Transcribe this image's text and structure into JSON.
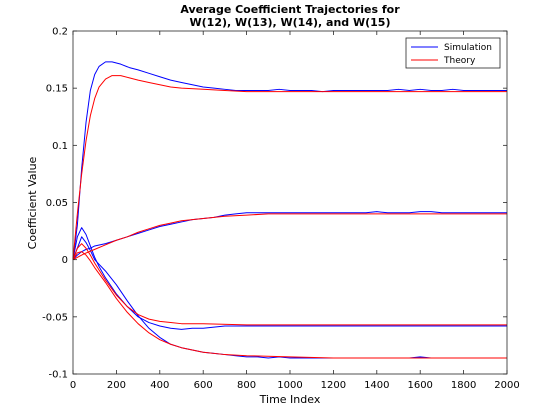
{
  "chart_data": {
    "type": "line",
    "title": [
      "Average Coefficient Trajectories for",
      "W(12), W(13), W(14), and W(15)"
    ],
    "xlabel": "Time Index",
    "ylabel": "Coefficient Value",
    "xlim": [
      0,
      2000
    ],
    "ylim": [
      -0.1,
      0.2
    ],
    "xticks": [
      "0",
      "200",
      "400",
      "600",
      "800",
      "1000",
      "1200",
      "1400",
      "1600",
      "1800",
      "2000"
    ],
    "yticks": [
      "0.2",
      "0.15",
      "0.1",
      "0.05",
      "0",
      "-0.05",
      "-0.1"
    ],
    "grid": false,
    "legend_position": "top-right",
    "legend": [
      "Simulation",
      "Theory"
    ],
    "colors": {
      "simulation": "#0000ff",
      "theory": "#ff0000"
    },
    "series": [
      {
        "name": "Simulation",
        "values": [
          [
            [
              0,
              0
            ],
            [
              20,
              0.03
            ],
            [
              40,
              0.08
            ],
            [
              60,
              0.12
            ],
            [
              80,
              0.148
            ],
            [
              100,
              0.162
            ],
            [
              120,
              0.169
            ],
            [
              150,
              0.173
            ],
            [
              180,
              0.173
            ],
            [
              220,
              0.171
            ],
            [
              260,
              0.168
            ],
            [
              300,
              0.166
            ],
            [
              350,
              0.163
            ],
            [
              400,
              0.16
            ],
            [
              450,
              0.157
            ],
            [
              500,
              0.155
            ],
            [
              550,
              0.153
            ],
            [
              600,
              0.151
            ],
            [
              650,
              0.15
            ],
            [
              700,
              0.149
            ],
            [
              750,
              0.148
            ],
            [
              800,
              0.148
            ],
            [
              850,
              0.148
            ],
            [
              900,
              0.148
            ],
            [
              950,
              0.149
            ],
            [
              1000,
              0.148
            ],
            [
              1050,
              0.148
            ],
            [
              1100,
              0.148
            ],
            [
              1150,
              0.147
            ],
            [
              1200,
              0.148
            ],
            [
              1250,
              0.148
            ],
            [
              1300,
              0.148
            ],
            [
              1350,
              0.148
            ],
            [
              1400,
              0.148
            ],
            [
              1450,
              0.148
            ],
            [
              1500,
              0.149
            ],
            [
              1550,
              0.148
            ],
            [
              1600,
              0.149
            ],
            [
              1650,
              0.148
            ],
            [
              1700,
              0.148
            ],
            [
              1750,
              0.149
            ],
            [
              1800,
              0.148
            ],
            [
              1850,
              0.148
            ],
            [
              1900,
              0.148
            ],
            [
              1950,
              0.148
            ],
            [
              2000,
              0.148
            ]
          ],
          [
            [
              0,
              0
            ],
            [
              20,
              0.004
            ],
            [
              40,
              0.007
            ],
            [
              60,
              0.009
            ],
            [
              80,
              0.01
            ],
            [
              100,
              0.012
            ],
            [
              150,
              0.014
            ],
            [
              200,
              0.017
            ],
            [
              250,
              0.02
            ],
            [
              300,
              0.023
            ],
            [
              350,
              0.026
            ],
            [
              400,
              0.029
            ],
            [
              450,
              0.031
            ],
            [
              500,
              0.033
            ],
            [
              550,
              0.035
            ],
            [
              600,
              0.036
            ],
            [
              650,
              0.037
            ],
            [
              700,
              0.039
            ],
            [
              750,
              0.04
            ],
            [
              800,
              0.041
            ],
            [
              850,
              0.041
            ],
            [
              900,
              0.041
            ],
            [
              950,
              0.041
            ],
            [
              1000,
              0.041
            ],
            [
              1050,
              0.041
            ],
            [
              1100,
              0.041
            ],
            [
              1150,
              0.041
            ],
            [
              1200,
              0.041
            ],
            [
              1250,
              0.041
            ],
            [
              1300,
              0.041
            ],
            [
              1350,
              0.041
            ],
            [
              1400,
              0.042
            ],
            [
              1450,
              0.041
            ],
            [
              1500,
              0.041
            ],
            [
              1550,
              0.041
            ],
            [
              1600,
              0.042
            ],
            [
              1650,
              0.042
            ],
            [
              1700,
              0.041
            ],
            [
              1750,
              0.041
            ],
            [
              1800,
              0.041
            ],
            [
              1850,
              0.041
            ],
            [
              1900,
              0.041
            ],
            [
              1950,
              0.041
            ],
            [
              2000,
              0.041
            ]
          ],
          [
            [
              0,
              0
            ],
            [
              20,
              0.02
            ],
            [
              40,
              0.028
            ],
            [
              60,
              0.022
            ],
            [
              80,
              0.012
            ],
            [
              100,
              0.002
            ],
            [
              120,
              -0.006
            ],
            [
              150,
              -0.016
            ],
            [
              200,
              -0.03
            ],
            [
              250,
              -0.041
            ],
            [
              300,
              -0.05
            ],
            [
              350,
              -0.055
            ],
            [
              400,
              -0.058
            ],
            [
              450,
              -0.06
            ],
            [
              500,
              -0.061
            ],
            [
              550,
              -0.06
            ],
            [
              600,
              -0.06
            ],
            [
              650,
              -0.059
            ],
            [
              700,
              -0.058
            ],
            [
              750,
              -0.058
            ],
            [
              800,
              -0.058
            ],
            [
              850,
              -0.058
            ],
            [
              900,
              -0.058
            ],
            [
              950,
              -0.058
            ],
            [
              1000,
              -0.058
            ],
            [
              1050,
              -0.058
            ],
            [
              1100,
              -0.058
            ],
            [
              1150,
              -0.058
            ],
            [
              1200,
              -0.058
            ],
            [
              1250,
              -0.058
            ],
            [
              1300,
              -0.058
            ],
            [
              1350,
              -0.058
            ],
            [
              1400,
              -0.058
            ],
            [
              1450,
              -0.058
            ],
            [
              1500,
              -0.058
            ],
            [
              1550,
              -0.058
            ],
            [
              1600,
              -0.058
            ],
            [
              1650,
              -0.058
            ],
            [
              1700,
              -0.058
            ],
            [
              1750,
              -0.058
            ],
            [
              1800,
              -0.058
            ],
            [
              1850,
              -0.058
            ],
            [
              1900,
              -0.058
            ],
            [
              1950,
              -0.058
            ],
            [
              2000,
              -0.058
            ]
          ],
          [
            [
              0,
              0
            ],
            [
              20,
              0.01
            ],
            [
              40,
              0.02
            ],
            [
              60,
              0.015
            ],
            [
              80,
              0.008
            ],
            [
              100,
              0.0
            ],
            [
              150,
              -0.01
            ],
            [
              200,
              -0.022
            ],
            [
              250,
              -0.036
            ],
            [
              300,
              -0.049
            ],
            [
              350,
              -0.06
            ],
            [
              400,
              -0.068
            ],
            [
              450,
              -0.074
            ],
            [
              500,
              -0.077
            ],
            [
              550,
              -0.079
            ],
            [
              600,
              -0.081
            ],
            [
              650,
              -0.082
            ],
            [
              700,
              -0.083
            ],
            [
              750,
              -0.084
            ],
            [
              800,
              -0.085
            ],
            [
              850,
              -0.085
            ],
            [
              900,
              -0.086
            ],
            [
              950,
              -0.085
            ],
            [
              1000,
              -0.086
            ],
            [
              1050,
              -0.086
            ],
            [
              1100,
              -0.086
            ],
            [
              1150,
              -0.086
            ],
            [
              1200,
              -0.086
            ],
            [
              1250,
              -0.086
            ],
            [
              1300,
              -0.086
            ],
            [
              1350,
              -0.086
            ],
            [
              1400,
              -0.086
            ],
            [
              1450,
              -0.086
            ],
            [
              1500,
              -0.086
            ],
            [
              1550,
              -0.086
            ],
            [
              1600,
              -0.085
            ],
            [
              1650,
              -0.086
            ],
            [
              1700,
              -0.086
            ],
            [
              1750,
              -0.086
            ],
            [
              1800,
              -0.086
            ],
            [
              1850,
              -0.086
            ],
            [
              1900,
              -0.086
            ],
            [
              1950,
              -0.086
            ],
            [
              2000,
              -0.086
            ]
          ]
        ]
      },
      {
        "name": "Theory",
        "values": [
          [
            [
              0,
              0
            ],
            [
              20,
              0.04
            ],
            [
              40,
              0.075
            ],
            [
              60,
              0.104
            ],
            [
              80,
              0.126
            ],
            [
              100,
              0.141
            ],
            [
              120,
              0.151
            ],
            [
              150,
              0.158
            ],
            [
              180,
              0.161
            ],
            [
              220,
              0.161
            ],
            [
              260,
              0.159
            ],
            [
              300,
              0.157
            ],
            [
              350,
              0.155
            ],
            [
              400,
              0.153
            ],
            [
              450,
              0.151
            ],
            [
              500,
              0.15
            ],
            [
              600,
              0.149
            ],
            [
              700,
              0.148
            ],
            [
              800,
              0.147
            ],
            [
              1000,
              0.147
            ],
            [
              1200,
              0.147
            ],
            [
              1400,
              0.147
            ],
            [
              1600,
              0.147
            ],
            [
              1800,
              0.147
            ],
            [
              2000,
              0.147
            ]
          ],
          [
            [
              0,
              0
            ],
            [
              50,
              0.005
            ],
            [
              100,
              0.009
            ],
            [
              150,
              0.013
            ],
            [
              200,
              0.017
            ],
            [
              250,
              0.02
            ],
            [
              300,
              0.024
            ],
            [
              350,
              0.027
            ],
            [
              400,
              0.03
            ],
            [
              450,
              0.032
            ],
            [
              500,
              0.034
            ],
            [
              550,
              0.035
            ],
            [
              600,
              0.036
            ],
            [
              700,
              0.038
            ],
            [
              800,
              0.039
            ],
            [
              900,
              0.04
            ],
            [
              1000,
              0.04
            ],
            [
              1200,
              0.04
            ],
            [
              1400,
              0.04
            ],
            [
              1600,
              0.04
            ],
            [
              1800,
              0.04
            ],
            [
              2000,
              0.04
            ]
          ],
          [
            [
              0,
              0
            ],
            [
              20,
              0.01
            ],
            [
              40,
              0.014
            ],
            [
              60,
              0.01
            ],
            [
              80,
              0.004
            ],
            [
              100,
              -0.003
            ],
            [
              150,
              -0.018
            ],
            [
              200,
              -0.031
            ],
            [
              250,
              -0.041
            ],
            [
              300,
              -0.048
            ],
            [
              350,
              -0.052
            ],
            [
              400,
              -0.054
            ],
            [
              450,
              -0.055
            ],
            [
              500,
              -0.056
            ],
            [
              600,
              -0.056
            ],
            [
              800,
              -0.057
            ],
            [
              1000,
              -0.057
            ],
            [
              1200,
              -0.057
            ],
            [
              1400,
              -0.057
            ],
            [
              1600,
              -0.057
            ],
            [
              1800,
              -0.057
            ],
            [
              2000,
              -0.057
            ]
          ],
          [
            [
              0,
              0
            ],
            [
              20,
              0.006
            ],
            [
              40,
              0.007
            ],
            [
              60,
              0.004
            ],
            [
              80,
              -0.001
            ],
            [
              100,
              -0.007
            ],
            [
              150,
              -0.02
            ],
            [
              200,
              -0.034
            ],
            [
              250,
              -0.046
            ],
            [
              300,
              -0.056
            ],
            [
              350,
              -0.064
            ],
            [
              400,
              -0.07
            ],
            [
              450,
              -0.074
            ],
            [
              500,
              -0.077
            ],
            [
              600,
              -0.081
            ],
            [
              700,
              -0.083
            ],
            [
              800,
              -0.084
            ],
            [
              1000,
              -0.085
            ],
            [
              1200,
              -0.086
            ],
            [
              1400,
              -0.086
            ],
            [
              1600,
              -0.086
            ],
            [
              1800,
              -0.086
            ],
            [
              2000,
              -0.086
            ]
          ]
        ]
      }
    ]
  }
}
